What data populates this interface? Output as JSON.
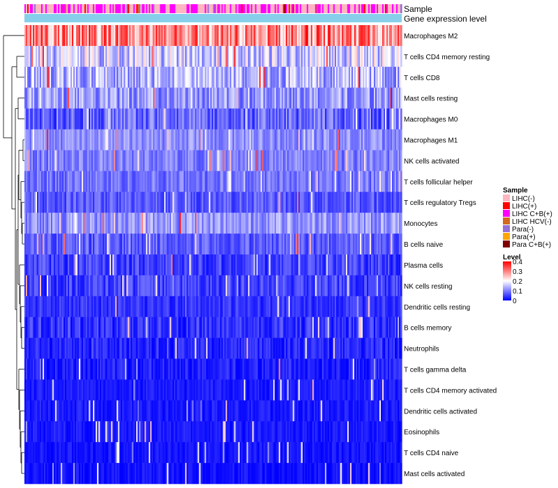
{
  "chart_data": {
    "type": "heatmap",
    "annotation_tracks": [
      "Sample",
      "Gene expression level"
    ],
    "rows": [
      "Macrophages M2",
      "T cells CD4 memory resting",
      "T cells CD8",
      "Mast cells resting",
      "Macrophages M0",
      "Macrophages M1",
      "NK cells activated",
      "T cells follicular helper",
      "T cells regulatory  Tregs",
      "Monocytes",
      "B cells naive",
      "Plasma cells",
      "NK cells resting",
      "Dendritic cells resting",
      "B cells memory",
      "Neutrophils",
      "T cells gamma delta",
      "T cells CD4 memory activated",
      "Dendritic cells activated",
      "Eosinophils",
      "T cells CD4 naive",
      "Mast cells activated"
    ],
    "row_mean_level": [
      0.29,
      0.16,
      0.14,
      0.12,
      0.08,
      0.11,
      0.1,
      0.09,
      0.07,
      0.12,
      0.07,
      0.05,
      0.05,
      0.04,
      0.04,
      0.03,
      0.025,
      0.02,
      0.02,
      0.02,
      0.015,
      0.015
    ],
    "row_spread": [
      0.1,
      0.08,
      0.07,
      0.06,
      0.06,
      0.04,
      0.04,
      0.04,
      0.04,
      0.05,
      0.04,
      0.04,
      0.04,
      0.03,
      0.04,
      0.03,
      0.03,
      0.02,
      0.02,
      0.02,
      0.02,
      0.02
    ],
    "n_samples": 270,
    "sample_groups": [
      {
        "name": "LIHC(-)",
        "color": "#ffb6c1"
      },
      {
        "name": "LIHC(+)",
        "color": "#ff0000"
      },
      {
        "name": "LIHC C+B(+)",
        "color": "#ff00ff"
      },
      {
        "name": "LIHC HCV(-)",
        "color": "#d2691e"
      },
      {
        "name": "Para(-)",
        "color": "#9370db"
      },
      {
        "name": "Para(+)",
        "color": "#ffa500"
      },
      {
        "name": "Para C+B(+)",
        "color": "#800000"
      }
    ],
    "sample_group_mix": [
      0.52,
      0.06,
      0.38,
      0.01,
      0.02,
      0.005,
      0.005
    ],
    "expression_track_color": "#87ceeb",
    "legend_sample_title": "Sample",
    "legend_level_title": "Level",
    "level_ticks": [
      "0.4",
      "0.3",
      "0.2",
      "0.1",
      "0"
    ],
    "level_range": [
      0,
      0.4
    ],
    "level_colors": [
      "#0000ff",
      "#ffffff",
      "#ff0000"
    ]
  }
}
